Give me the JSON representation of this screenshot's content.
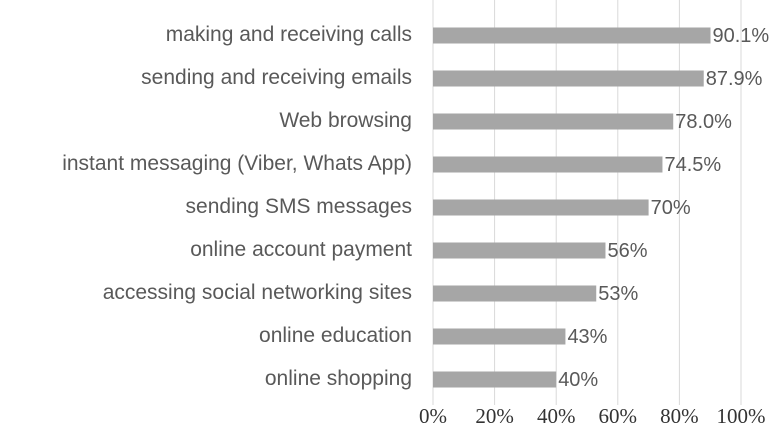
{
  "chart_data": {
    "type": "bar",
    "orientation": "horizontal",
    "categories": [
      "making and receiving calls",
      "sending and receiving emails",
      "Web browsing",
      "instant messaging (Viber, Whats App)",
      "sending SMS messages ",
      "online account payment",
      "accessing social networking sites ",
      "online education",
      "online shopping"
    ],
    "values": [
      90.1,
      87.9,
      78.0,
      74.5,
      70,
      56,
      53,
      43,
      40
    ],
    "value_labels": [
      "90.1%",
      "87.9%",
      "78.0%",
      "74.5%",
      "70%",
      "56%",
      "53%",
      "43%",
      "40%"
    ],
    "color": "#a6a6a6",
    "xlim": [
      0,
      100
    ],
    "xticks": [
      {
        "value": 0,
        "label": "0%"
      },
      {
        "value": 20,
        "label": "20%"
      },
      {
        "value": 40,
        "label": "40%"
      },
      {
        "value": 60,
        "label": "60%"
      },
      {
        "value": 80,
        "label": "80%"
      },
      {
        "value": 100,
        "label": "100%"
      }
    ],
    "grid": true
  }
}
